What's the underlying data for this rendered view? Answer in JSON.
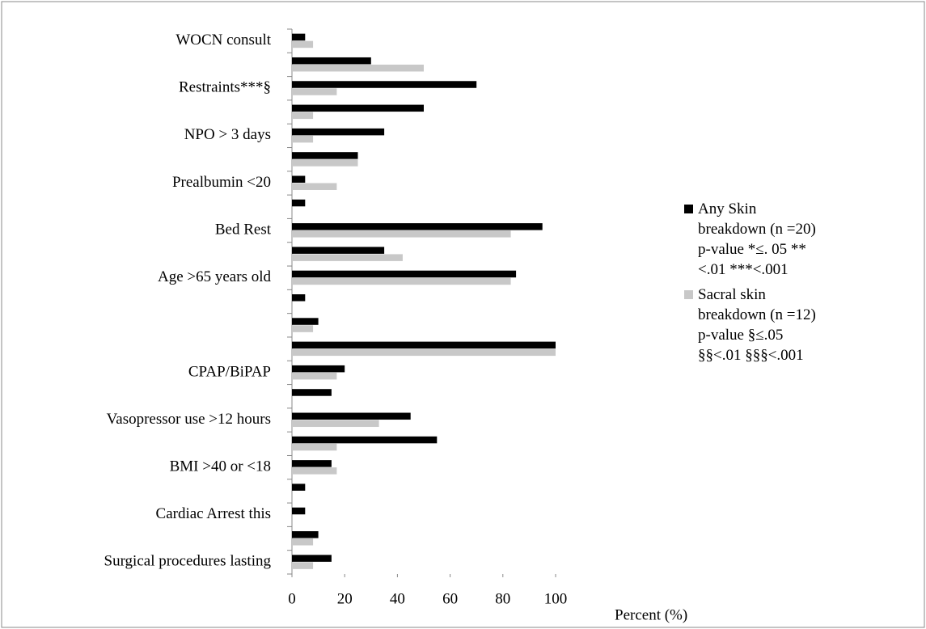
{
  "chart_data": {
    "type": "hbar",
    "categories": [
      "WOCN consult",
      null,
      "Restraints***§",
      null,
      "NPO > 3 days",
      null,
      "Prealbumin <20",
      null,
      "Bed Rest",
      null,
      "Age >65 years old",
      null,
      null,
      null,
      "CPAP/BiPAP",
      null,
      "Vasopressor use >12 hours",
      null,
      "BMI >40 or <18",
      null,
      "Cardiac Arrest this",
      null,
      "Surgical procedures lasting"
    ],
    "series": [
      {
        "name": "Any Skin breakdown (n =20)   p-value *≤. 05 **<.01 ***<.001",
        "color": "#000000",
        "values": [
          5,
          30,
          70,
          50,
          35,
          25,
          5,
          5,
          95,
          35,
          85,
          5,
          10,
          100,
          20,
          15,
          45,
          55,
          15,
          5,
          5,
          10,
          15
        ]
      },
      {
        "name": "Sacral skin breakdown (n =12) p-value §≤.05 §§<.01 §§§<.001",
        "color": "#c8c8c8",
        "values": [
          8,
          50,
          17,
          8,
          8,
          25,
          17,
          0,
          83,
          42,
          83,
          0,
          8,
          100,
          17,
          0,
          33,
          17,
          17,
          0,
          0,
          8,
          8
        ]
      }
    ],
    "xlim": [
      0,
      100
    ],
    "xticks": [
      0,
      20,
      40,
      60,
      80,
      100
    ],
    "x_label": "Percent (%)"
  }
}
